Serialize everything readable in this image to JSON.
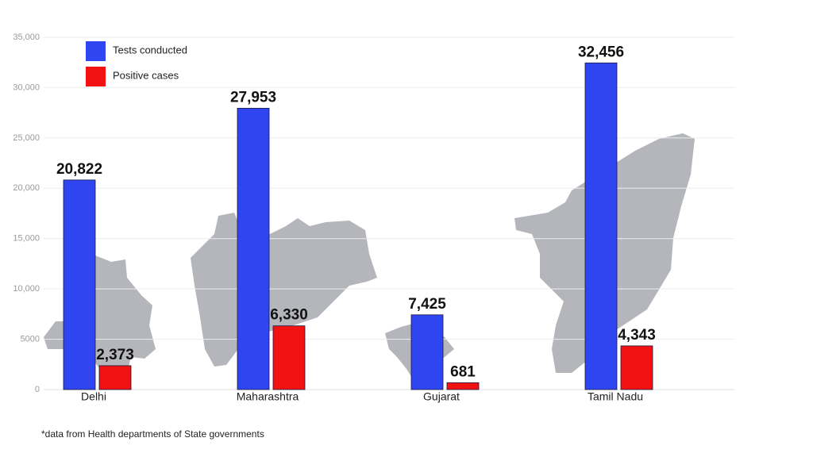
{
  "chart_data": {
    "type": "bar",
    "categories": [
      "Delhi",
      "Maharashtra",
      "Gujarat",
      "Tamil Nadu"
    ],
    "series": [
      {
        "name": "Tests conducted",
        "color": "#2f45f2",
        "values": [
          20822,
          27953,
          7425,
          32456
        ],
        "value_labels": [
          "20,822",
          "27,953",
          "7,425",
          "32,456"
        ]
      },
      {
        "name": "Positive cases",
        "color": "#f21212",
        "values": [
          2373,
          6330,
          681,
          4343
        ],
        "value_labels": [
          "2,373",
          "6,330",
          "681",
          "4,343"
        ]
      }
    ],
    "ylim": [
      0,
      35000
    ],
    "yticks": [
      0,
      5000,
      {
        "value": 10000,
        "label": "10,000"
      },
      {
        "value": 15000,
        "label": "15,000"
      },
      {
        "value": 20000,
        "label": "20,000"
      },
      {
        "value": 25000,
        "label": "25,000"
      },
      {
        "value": 30000,
        "label": "30,000"
      },
      {
        "value": 35000,
        "label": "35,000"
      }
    ],
    "grid": true,
    "legend": "upper left",
    "footnote": "*data from Health departments of State governments"
  }
}
